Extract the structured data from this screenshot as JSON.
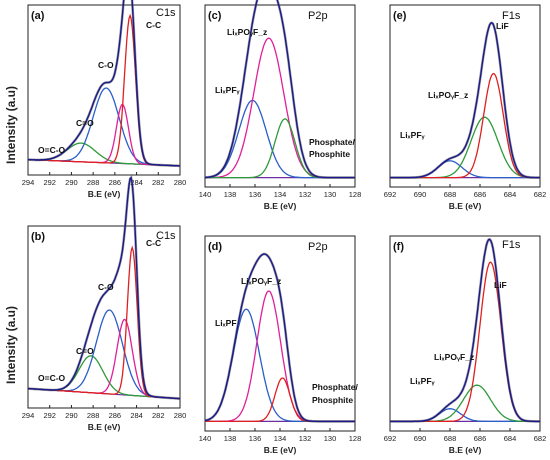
{
  "figure": {
    "ylabel": "Intensity (a.u)",
    "colors": {
      "raw": "#555555",
      "envelope": "#1a1a8c",
      "baseline": "#6b2fa0",
      "magenta": "#e0209a",
      "blue": "#2a5fc8",
      "green": "#2f9a3a",
      "red": "#e02020"
    }
  },
  "chart_data": [
    {
      "type": "line",
      "panel": "(a)",
      "title": "C1s",
      "xlabel": "B.E (eV)",
      "xlim": [
        294,
        280
      ],
      "reversed_x": true,
      "xticks": [
        294,
        292,
        290,
        288,
        286,
        284,
        282,
        280
      ],
      "annotations": [
        "C-C",
        "C-O",
        "C=O",
        "O=C-O"
      ],
      "series": [
        {
          "color": "green",
          "center": 289.1,
          "sigma": 1.3,
          "amp": 0.12
        },
        {
          "color": "blue",
          "center": 286.8,
          "sigma": 1.2,
          "amp": 0.48
        },
        {
          "color": "magenta",
          "center": 285.3,
          "sigma": 0.55,
          "amp": 0.38
        },
        {
          "color": "red",
          "center": 284.6,
          "sigma": 0.5,
          "amp": 0.95
        }
      ],
      "baseline": [
        0.06,
        0.02
      ]
    },
    {
      "type": "line",
      "panel": "(c)",
      "title": "P2p",
      "xlabel": "B.E (eV)",
      "xlim": [
        140,
        128
      ],
      "reversed_x": true,
      "xticks": [
        140,
        138,
        136,
        134,
        132,
        130,
        128
      ],
      "annotations": [
        "LiₓPOᵧF_z",
        "LiₓPFᵧ",
        "Phosphate/",
        "Phosphite"
      ],
      "series": [
        {
          "color": "blue",
          "center": 136.2,
          "sigma": 1.1,
          "amp": 0.46
        },
        {
          "color": "magenta",
          "center": 134.9,
          "sigma": 1.2,
          "amp": 0.83
        },
        {
          "color": "green",
          "center": 133.6,
          "sigma": 0.8,
          "amp": 0.35
        }
      ],
      "baseline": [
        0.02,
        0.02
      ]
    },
    {
      "type": "line",
      "panel": "(e)",
      "title": "F1s",
      "xlabel": "B.E (eV)",
      "xlim": [
        692,
        682
      ],
      "reversed_x": true,
      "xticks": [
        692,
        690,
        688,
        686,
        684,
        682
      ],
      "annotations": [
        "LiF",
        "LiₓPOᵧF_z",
        "LiₓPFᵧ"
      ],
      "series": [
        {
          "color": "blue",
          "center": 688.0,
          "sigma": 0.8,
          "amp": 0.1
        },
        {
          "color": "green",
          "center": 685.7,
          "sigma": 0.9,
          "amp": 0.36
        },
        {
          "color": "red",
          "center": 685.1,
          "sigma": 0.65,
          "amp": 0.62
        }
      ],
      "baseline": [
        0.02,
        0.02
      ]
    },
    {
      "type": "line",
      "panel": "(b)",
      "title": "C1s",
      "xlabel": "B.E (eV)",
      "xlim": [
        294,
        280
      ],
      "reversed_x": true,
      "xticks": [
        294,
        292,
        290,
        288,
        286,
        284,
        282,
        280
      ],
      "annotations": [
        "C-C",
        "C-O",
        "C=O",
        "O=C-O"
      ],
      "series": [
        {
          "color": "green",
          "center": 288.2,
          "sigma": 1.1,
          "amp": 0.22
        },
        {
          "color": "blue",
          "center": 286.5,
          "sigma": 1.2,
          "amp": 0.5
        },
        {
          "color": "magenta",
          "center": 285.1,
          "sigma": 0.7,
          "amp": 0.45
        },
        {
          "color": "red",
          "center": 284.4,
          "sigma": 0.45,
          "amp": 0.88
        }
      ],
      "baseline": [
        0.08,
        0.02
      ]
    },
    {
      "type": "line",
      "panel": "(d)",
      "title": "P2p",
      "xlabel": "B.E (eV)",
      "xlim": [
        140,
        128
      ],
      "reversed_x": true,
      "xticks": [
        140,
        138,
        136,
        134,
        132,
        130,
        128
      ],
      "annotations": [
        "LiₓPOᵧF_z",
        "LiₓPF",
        "Phosphate/",
        "Phosphite"
      ],
      "series": [
        {
          "color": "blue",
          "center": 136.7,
          "sigma": 1.05,
          "amp": 0.62
        },
        {
          "color": "magenta",
          "center": 134.9,
          "sigma": 0.95,
          "amp": 0.72
        },
        {
          "color": "red",
          "center": 133.8,
          "sigma": 0.6,
          "amp": 0.24
        }
      ],
      "baseline": [
        0.02,
        0.02
      ]
    },
    {
      "type": "line",
      "panel": "(f)",
      "title": "F1s",
      "xlabel": "B.E (eV)",
      "xlim": [
        692,
        682
      ],
      "reversed_x": true,
      "xticks": [
        692,
        690,
        688,
        686,
        684,
        682
      ],
      "annotations": [
        "LiF",
        "LiₓPOᵧF_z",
        "LiₓPFᵧ"
      ],
      "series": [
        {
          "color": "blue",
          "center": 688.0,
          "sigma": 0.7,
          "amp": 0.07
        },
        {
          "color": "green",
          "center": 686.2,
          "sigma": 0.9,
          "amp": 0.2
        },
        {
          "color": "red",
          "center": 685.3,
          "sigma": 0.7,
          "amp": 0.88
        }
      ],
      "baseline": [
        0.02,
        0.02
      ]
    }
  ]
}
